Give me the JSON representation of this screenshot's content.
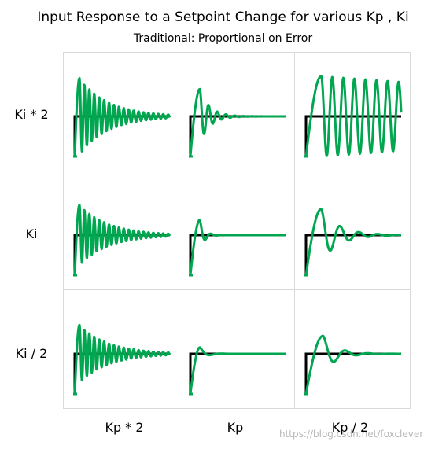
{
  "chart_data": {
    "type": "line",
    "title": "Input Response to a Setpoint Change for various Kp , Ki",
    "subtitle": "Traditional: Proportional on Error",
    "columns": [
      "Kp * 2",
      "Kp",
      "Kp / 2"
    ],
    "rows": [
      "Ki * 2",
      "Ki",
      "Ki / 2"
    ],
    "setpoint_color": "#000000",
    "response_color": "#00a650",
    "setpoint": {
      "initial": 0,
      "final": 1
    },
    "panels": [
      {
        "row": "Ki * 2",
        "col": "Kp * 2",
        "overshoot": 0.95,
        "freq": 4.6,
        "decay": 0.55,
        "rise": 0.05
      },
      {
        "row": "Ki * 2",
        "col": "Kp",
        "overshoot": 0.68,
        "freq": 2.6,
        "decay": 1.6,
        "rise": 0.1
      },
      {
        "row": "Ki * 2",
        "col": "Kp / 2",
        "overshoot": 1.0,
        "freq": 2.05,
        "decay": 0.03,
        "rise": 0.16
      },
      {
        "row": "Ki",
        "col": "Kp * 2",
        "overshoot": 0.75,
        "freq": 4.6,
        "decay": 0.55,
        "rise": 0.05
      },
      {
        "row": "Ki",
        "col": "Kp",
        "overshoot": 0.38,
        "freq": 2.0,
        "decay": 3.5,
        "rise": 0.1
      },
      {
        "row": "Ki",
        "col": "Kp / 2",
        "overshoot": 0.65,
        "freq": 1.2,
        "decay": 0.9,
        "rise": 0.16
      },
      {
        "row": "Ki / 2",
        "col": "Kp * 2",
        "overshoot": 0.72,
        "freq": 4.6,
        "decay": 0.55,
        "rise": 0.05
      },
      {
        "row": "Ki / 2",
        "col": "Kp",
        "overshoot": 0.16,
        "freq": 1.0,
        "decay": 2.5,
        "rise": 0.1
      },
      {
        "row": "Ki / 2",
        "col": "Kp / 2",
        "overshoot": 0.45,
        "freq": 1.0,
        "decay": 1.2,
        "rise": 0.18
      }
    ]
  },
  "watermark": "https://blog.csdn.net/foxclever"
}
